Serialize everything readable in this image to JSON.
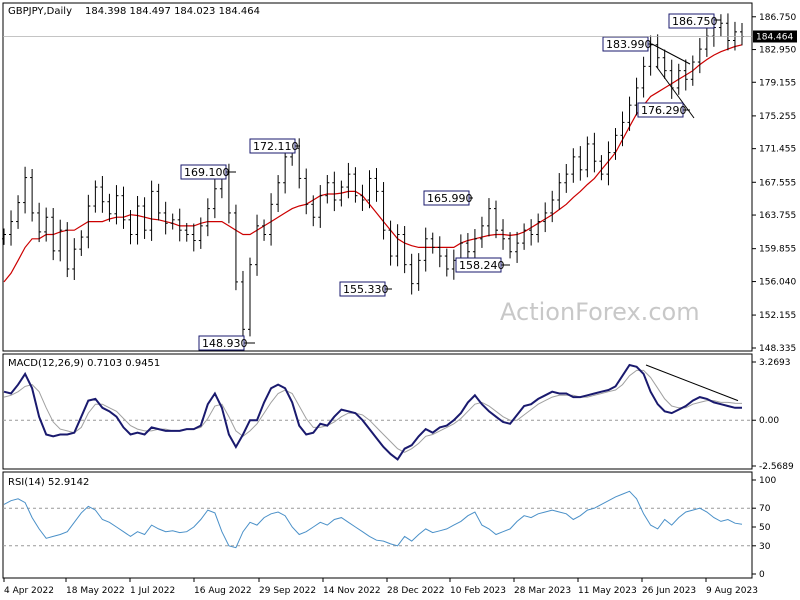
{
  "colors": {
    "price_bar": "#000000",
    "ma": "#cc0000",
    "macd": "#1a1a6e",
    "signal": "#a0a0a0",
    "rsi": "#4a90c8",
    "annotation_border": "#1a1a6e"
  },
  "header": {
    "symbol": "GBPJPY,Daily",
    "ohlc": "184.398 184.497 184.023 184.464"
  },
  "watermark": "ActionForex.com",
  "chart_data": [
    {
      "type": "ohlc",
      "panel": "price",
      "ylim": [
        148.335,
        188.0
      ],
      "y_ticks": [
        "186.750",
        "182.950",
        "179.155",
        "175.255",
        "171.455",
        "167.555",
        "163.755",
        "159.855",
        "156.040",
        "152.155",
        "148.335"
      ],
      "current_price": "184.464",
      "x_labels": [
        "4 Apr 2022",
        "18 May 2022",
        "1 Jul 2022",
        "16 Aug 2022",
        "29 Sep 2022",
        "14 Nov 2022",
        "28 Dec 2022",
        "10 Feb 2023",
        "28 Mar 2023",
        "11 May 2023",
        "26 Jun 2023",
        "9 Aug 2023"
      ],
      "annotations": [
        {
          "text": "169.100",
          "value": 169.1
        },
        {
          "text": "172.110",
          "value": 172.11
        },
        {
          "text": "148.930",
          "value": 148.93
        },
        {
          "text": "155.330",
          "value": 155.33
        },
        {
          "text": "165.990",
          "value": 165.99
        },
        {
          "text": "158.240",
          "value": 158.24
        },
        {
          "text": "183.990",
          "value": 183.99
        },
        {
          "text": "176.290",
          "value": 176.29
        },
        {
          "text": "186.750",
          "value": 186.75
        }
      ],
      "closes": [
        161.5,
        163.0,
        165.2,
        168.1,
        164.0,
        161.8,
        163.5,
        159.6,
        162.0,
        157.5,
        159.8,
        161.2,
        164.8,
        167.0,
        165.3,
        163.9,
        166.0,
        163.2,
        161.5,
        164.8,
        162.0,
        166.5,
        164.0,
        162.8,
        163.2,
        162.0,
        161.5,
        160.8,
        162.5,
        164.5,
        166.8,
        168.5,
        164.0,
        156.0,
        150.5,
        158.0,
        162.5,
        161.5,
        165.0,
        167.5,
        170.5,
        171.5,
        168.0,
        165.0,
        163.5,
        166.0,
        167.5,
        165.5,
        167.0,
        168.5,
        166.0,
        165.5,
        168.0,
        166.5,
        162.0,
        159.0,
        161.5,
        158.0,
        155.8,
        158.5,
        161.0,
        160.0,
        159.0,
        157.5,
        158.5,
        160.5,
        159.5,
        161.0,
        162.5,
        164.5,
        162.0,
        161.0,
        159.5,
        160.5,
        162.0,
        161.5,
        163.0,
        164.0,
        165.5,
        167.5,
        168.5,
        170.5,
        169.0,
        172.0,
        170.0,
        168.5,
        171.0,
        173.0,
        174.5,
        176.5,
        178.5,
        181.0,
        183.5,
        182.0,
        180.5,
        178.5,
        180.5,
        179.5,
        181.5,
        183.0,
        184.5,
        185.5,
        186.0,
        184.0,
        185.0,
        184.46
      ],
      "ma_values": [
        156.0,
        157.0,
        158.5,
        160.0,
        161.0,
        161.0,
        161.5,
        161.5,
        161.8,
        162.0,
        162.0,
        162.5,
        163.0,
        163.0,
        163.0,
        163.3,
        163.5,
        163.5,
        163.8,
        163.7,
        163.5,
        163.3,
        163.2,
        163.0,
        162.8,
        162.5,
        162.5,
        162.5,
        162.8,
        163.0,
        163.0,
        163.0,
        162.5,
        162.0,
        161.5,
        161.5,
        162.0,
        162.5,
        163.0,
        163.5,
        164.0,
        164.5,
        164.8,
        165.0,
        165.5,
        166.0,
        166.2,
        166.2,
        166.3,
        166.5,
        166.5,
        166.0,
        165.0,
        164.0,
        163.0,
        162.0,
        161.0,
        160.5,
        160.2,
        160.0,
        160.0,
        160.0,
        160.0,
        160.0,
        160.0,
        160.5,
        160.8,
        161.0,
        161.2,
        161.4,
        161.5,
        161.5,
        161.4,
        161.5,
        161.8,
        162.3,
        162.8,
        163.3,
        163.8,
        164.4,
        165.0,
        165.8,
        166.5,
        167.3,
        168.0,
        169.0,
        170.0,
        171.0,
        172.5,
        174.0,
        175.5,
        176.5,
        177.5,
        178.0,
        178.5,
        179.0,
        179.5,
        180.0,
        180.5,
        181.2,
        181.8,
        182.3,
        182.7,
        183.0,
        183.3,
        183.5
      ]
    },
    {
      "type": "line",
      "panel": "macd",
      "title": "MACD(12,26,9) 0.7103 0.9451",
      "ylim": [
        -2.5689,
        3.2693
      ],
      "y_ticks": [
        "3.2693",
        "0.00",
        "-2.5689"
      ],
      "series": [
        {
          "name": "MACD",
          "values": [
            1.6,
            1.5,
            2.0,
            2.6,
            1.8,
            0.2,
            -0.8,
            -0.9,
            -0.8,
            -0.8,
            -0.7,
            0.2,
            1.1,
            1.2,
            0.7,
            0.5,
            0.2,
            -0.4,
            -0.8,
            -0.7,
            -0.8,
            -0.4,
            -0.5,
            -0.6,
            -0.6,
            -0.6,
            -0.5,
            -0.5,
            -0.3,
            0.9,
            1.5,
            0.7,
            -0.8,
            -1.5,
            -0.8,
            0.0,
            0.0,
            1.0,
            1.8,
            2.0,
            1.8,
            1.0,
            -0.3,
            -0.8,
            -0.7,
            -0.2,
            -0.3,
            0.2,
            0.6,
            0.5,
            0.4,
            0.0,
            -0.5,
            -1.0,
            -1.5,
            -1.9,
            -2.2,
            -1.6,
            -1.4,
            -0.9,
            -0.5,
            -0.7,
            -0.4,
            -0.3,
            0.0,
            0.4,
            1.0,
            1.4,
            0.9,
            0.5,
            0.2,
            -0.1,
            -0.2,
            0.3,
            0.8,
            0.9,
            1.2,
            1.4,
            1.6,
            1.5,
            1.5,
            1.3,
            1.3,
            1.4,
            1.5,
            1.6,
            1.7,
            1.9,
            2.5,
            3.1,
            3.0,
            2.6,
            1.6,
            0.9,
            0.5,
            0.4,
            0.6,
            0.8,
            1.1,
            1.3,
            1.2,
            1.0,
            0.9,
            0.8,
            0.7,
            0.7
          ]
        },
        {
          "name": "Signal",
          "values": [
            1.3,
            1.4,
            1.6,
            1.9,
            2.0,
            1.6,
            0.7,
            -0.1,
            -0.5,
            -0.6,
            -0.7,
            -0.4,
            0.4,
            0.9,
            0.9,
            0.7,
            0.5,
            0.1,
            -0.3,
            -0.5,
            -0.6,
            -0.6,
            -0.5,
            -0.5,
            -0.6,
            -0.6,
            -0.5,
            -0.5,
            -0.4,
            0.1,
            0.8,
            0.9,
            0.2,
            -0.6,
            -0.9,
            -0.6,
            -0.2,
            0.4,
            1.0,
            1.5,
            1.7,
            1.5,
            0.8,
            0.1,
            -0.4,
            -0.4,
            -0.3,
            -0.1,
            0.2,
            0.4,
            0.4,
            0.3,
            0.0,
            -0.4,
            -0.8,
            -1.2,
            -1.6,
            -1.8,
            -1.6,
            -1.3,
            -0.9,
            -0.8,
            -0.6,
            -0.4,
            -0.2,
            0.1,
            0.5,
            0.9,
            1.0,
            0.8,
            0.5,
            0.2,
            0.0,
            0.0,
            0.3,
            0.6,
            0.9,
            1.1,
            1.3,
            1.4,
            1.4,
            1.4,
            1.3,
            1.3,
            1.4,
            1.5,
            1.6,
            1.7,
            2.0,
            2.5,
            2.8,
            2.8,
            2.4,
            1.8,
            1.2,
            0.8,
            0.7,
            0.7,
            0.9,
            1.0,
            1.1,
            1.1,
            1.0,
            1.0,
            0.95,
            0.945
          ]
        }
      ]
    },
    {
      "type": "line",
      "panel": "rsi",
      "title": "RSI(14) 52.9142",
      "ylim": [
        0,
        100
      ],
      "y_ticks": [
        "100",
        "70",
        "50",
        "30",
        "0"
      ],
      "series": [
        {
          "name": "RSI",
          "values": [
            74,
            78,
            80,
            76,
            60,
            48,
            38,
            40,
            42,
            45,
            55,
            65,
            72,
            68,
            58,
            55,
            50,
            45,
            40,
            45,
            42,
            52,
            48,
            45,
            46,
            44,
            45,
            50,
            58,
            68,
            65,
            45,
            30,
            28,
            45,
            55,
            52,
            60,
            64,
            66,
            62,
            50,
            42,
            45,
            50,
            55,
            52,
            58,
            60,
            55,
            50,
            45,
            40,
            36,
            35,
            32,
            30,
            40,
            35,
            42,
            48,
            44,
            46,
            48,
            52,
            56,
            62,
            66,
            52,
            48,
            42,
            45,
            48,
            56,
            62,
            60,
            64,
            66,
            68,
            66,
            64,
            58,
            62,
            68,
            70,
            74,
            78,
            82,
            85,
            88,
            80,
            64,
            52,
            48,
            58,
            52,
            60,
            66,
            68,
            70,
            66,
            60,
            56,
            58,
            54,
            53
          ]
        }
      ]
    }
  ]
}
